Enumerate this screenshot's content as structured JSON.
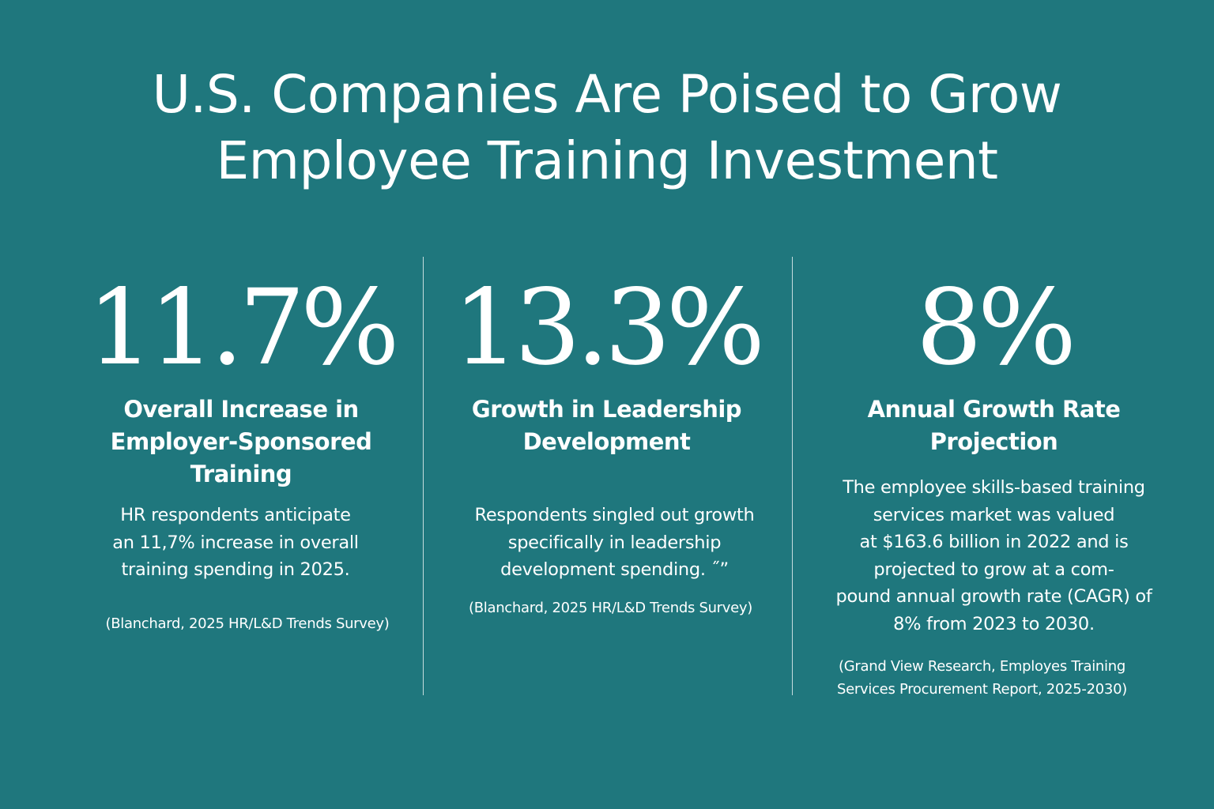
{
  "title": {
    "line1": "U.S. Companies Are Poised to Grow",
    "line2": "Employee Training Investment"
  },
  "stats": [
    {
      "value": "11.7%",
      "label_lines": [
        "Overall Increase in",
        "Employer-Sponsored",
        "Training"
      ],
      "desc_lines": [
        "HR respondents anticipate",
        "an 11,7% increase in overall",
        "training spending in 2025."
      ],
      "source_lines": [
        "(Blanchard, 2025 HR/L&D Trends Survey)"
      ]
    },
    {
      "value": "13.3%",
      "label_lines": [
        "Growth in Leadership",
        "Development"
      ],
      "desc_lines": [
        "Respondents singled out growth",
        "specifically in leadership",
        "development spending. ˝”"
      ],
      "source_lines": [
        "(Blanchard, 2025 HR/L&D Trends Survey)"
      ]
    },
    {
      "value": "8%",
      "label_lines": [
        "Annual Growth Rate",
        "Projection"
      ],
      "desc_lines": [
        "The employee skills-based training",
        "services market was valued",
        "at $163.6 billion in 2022 and is",
        "projected to grow at a com-",
        "pound annual growth rate (CAGR) of",
        "8% from 2023 to 2030."
      ],
      "source_lines": [
        "(Grand View Research, Employes Training",
        "Services Procurement Report, 2025-2030)"
      ]
    }
  ]
}
